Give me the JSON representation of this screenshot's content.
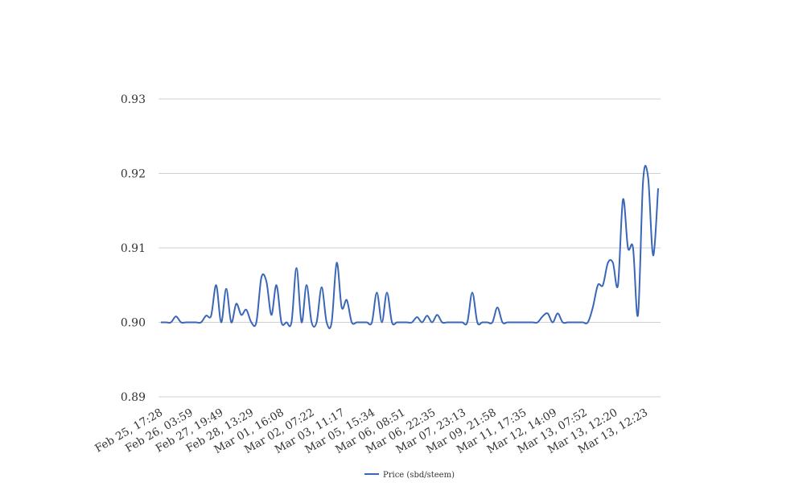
{
  "chart_data": {
    "type": "line",
    "title": "",
    "xlabel": "",
    "ylabel": "",
    "ylim": [
      0.89,
      0.93
    ],
    "yticks": [
      "0.89",
      "0.90",
      "0.91",
      "0.92",
      "0.93"
    ],
    "x_tick_labels": [
      "Feb 25, 17:28",
      "Feb 26, 03:59",
      "Feb 27, 19:49",
      "Feb 28, 13:29",
      "Mar 01, 16:08",
      "Mar 02, 07:22",
      "Mar 03, 11:17",
      "Mar 05, 15:34",
      "Mar 06, 08:51",
      "Mar 06, 22:35",
      "Mar 07, 23:13",
      "Mar 09, 21:58",
      "Mar 11, 17:35",
      "Mar 12, 14:09",
      "Mar 13, 07:52",
      "Mar 13, 12:20",
      "Mar 13, 12:23"
    ],
    "grid": "horizontal",
    "legend_position": "bottom",
    "series": [
      {
        "name": "Price (sbd/steem)",
        "color": "#3a66b7",
        "values": [
          0.9,
          0.9,
          0.9,
          0.9008,
          0.9,
          0.9,
          0.9,
          0.9,
          0.9,
          0.9009,
          0.9009,
          0.905,
          0.9,
          0.9045,
          0.9,
          0.9025,
          0.901,
          0.9017,
          0.9,
          0.9,
          0.906,
          0.9055,
          0.901,
          0.905,
          0.9,
          0.9,
          0.9,
          0.9073,
          0.9,
          0.905,
          0.9,
          0.9,
          0.9047,
          0.9,
          0.9,
          0.908,
          0.902,
          0.903,
          0.9,
          0.9,
          0.9,
          0.9,
          0.9,
          0.904,
          0.9,
          0.904,
          0.9,
          0.9,
          0.9,
          0.9,
          0.9,
          0.9007,
          0.9,
          0.9009,
          0.9,
          0.901,
          0.9,
          0.9,
          0.9,
          0.9,
          0.9,
          0.9,
          0.904,
          0.9,
          0.9,
          0.9,
          0.9,
          0.902,
          0.9,
          0.9,
          0.9,
          0.9,
          0.9,
          0.9,
          0.9,
          0.9,
          0.9008,
          0.9012,
          0.9,
          0.9012,
          0.9,
          0.9,
          0.9,
          0.9,
          0.9,
          0.9,
          0.902,
          0.905,
          0.905,
          0.908,
          0.908,
          0.905,
          0.9165,
          0.91,
          0.91,
          0.901,
          0.919,
          0.9195,
          0.909,
          0.918
        ]
      }
    ]
  }
}
